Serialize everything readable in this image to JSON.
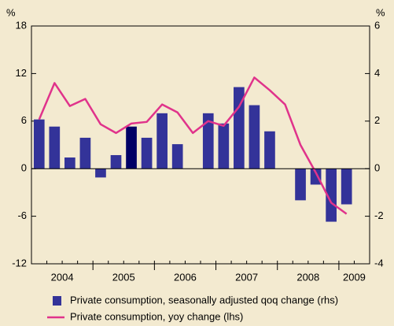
{
  "chart_data": {
    "type": "bar-line",
    "ylabel": "%",
    "y2label": "%",
    "ylim": [
      -12,
      18
    ],
    "yticks": [
      -12,
      -6,
      0,
      6,
      12,
      18
    ],
    "y2lim": [
      -4,
      6
    ],
    "y2ticks": [
      -4,
      -2,
      0,
      2,
      4,
      6
    ],
    "categories": [
      null,
      null,
      null,
      null,
      null,
      null,
      null,
      null,
      null,
      null,
      null,
      null,
      null,
      null,
      null,
      null,
      null,
      null,
      null,
      null,
      null,
      null
    ],
    "x_groups": [
      "2004",
      "2005",
      "2006",
      "2007",
      "2008",
      "2009"
    ],
    "series": [
      {
        "name": "Private consumption, seasonally adjusted qoq change (rhs)",
        "type": "bar",
        "axis": "y2",
        "color": "#333399",
        "colors": [
          "#333399",
          "#333399",
          "#333399",
          "#333399",
          "#333399",
          "#333399",
          "#000066",
          "#333399",
          "#333399",
          "#333399",
          "#333399",
          "#333399",
          "#333399",
          "#333399",
          "#333399",
          "#333399",
          "#333399",
          "#333399",
          "#333399",
          "#333399",
          "#333399",
          "#333399"
        ],
        "values": [
          2.07,
          1.77,
          0.47,
          1.3,
          -0.37,
          0.57,
          1.77,
          1.3,
          2.33,
          1.03,
          null,
          2.33,
          1.9,
          3.43,
          2.67,
          1.57,
          null,
          -1.33,
          -0.67,
          -2.23,
          -1.5,
          null
        ]
      },
      {
        "name": "Private consumption, yoy change (lhs)",
        "type": "line",
        "axis": "y",
        "color": "#e0338b",
        "values": [
          6.2,
          10.8,
          7.9,
          8.8,
          5.6,
          4.5,
          5.7,
          5.9,
          8.1,
          7.1,
          4.5,
          6.0,
          5.4,
          7.8,
          11.5,
          9.9,
          8.1,
          3.0,
          -0.5,
          -4.3,
          -5.7,
          null
        ]
      }
    ]
  }
}
